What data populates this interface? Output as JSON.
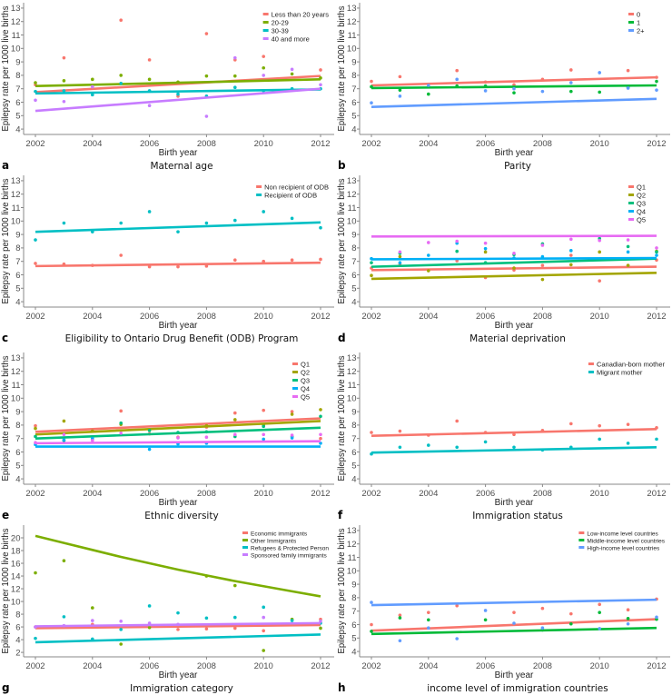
{
  "chart_data": [
    {
      "letter": "a",
      "title": "Maternal age",
      "type": "scatter",
      "xlabel": "Birth year",
      "ylabel": "Epilepsy rate per 1000 live births",
      "ylim": [
        3.6,
        13.4
      ],
      "yticks": [
        4,
        5,
        6,
        7,
        8,
        9,
        10,
        11,
        12,
        13
      ],
      "xticks": [
        2002,
        2004,
        2006,
        2008,
        2010,
        2012
      ],
      "legend": "top-right",
      "legend_size": "normal",
      "x": [
        2002,
        2003,
        2004,
        2005,
        2006,
        2007,
        2008,
        2009,
        2010,
        2011,
        2012
      ],
      "series": [
        {
          "name": "Less than 20 years",
          "color": "#F8766D",
          "values": [
            7.3,
            9.3,
            null,
            12.1,
            9.15,
            6.45,
            11.1,
            9.15,
            9.4,
            null,
            8.4
          ],
          "trend": [
            6.75,
            7.95
          ]
        },
        {
          "name": "20-29",
          "color": "#7CAE00",
          "values": [
            7.45,
            7.6,
            7.7,
            8.0,
            7.7,
            7.5,
            7.95,
            7.95,
            8.55,
            8.1,
            7.8
          ],
          "trend": [
            7.2,
            7.7
          ]
        },
        {
          "name": "30-39",
          "color": "#00BFC4",
          "values": [
            6.8,
            6.85,
            6.55,
            7.4,
            6.85,
            6.6,
            6.45,
            7.1,
            6.85,
            7.0,
            7.0
          ],
          "trend": [
            6.65,
            6.95
          ]
        },
        {
          "name": "40 and more",
          "color": "#C77CFF",
          "values": [
            6.15,
            6.05,
            7.15,
            null,
            5.75,
            null,
            4.95,
            9.3,
            8.0,
            8.45,
            7.3
          ],
          "trend": [
            5.35,
            7.0
          ]
        }
      ]
    },
    {
      "letter": "b",
      "title": "Parity",
      "type": "scatter",
      "xlabel": "Birth year",
      "ylabel": "Epilepsy rate per 1000 live births",
      "ylim": [
        3.6,
        13.4
      ],
      "yticks": [
        4,
        5,
        6,
        7,
        8,
        9,
        10,
        11,
        12,
        13
      ],
      "xticks": [
        2002,
        2004,
        2006,
        2008,
        2010,
        2012
      ],
      "legend": "top-right",
      "legend_size": "normal",
      "x": [
        2002,
        2003,
        2004,
        2005,
        2006,
        2007,
        2008,
        2009,
        2010,
        2011,
        2012
      ],
      "series": [
        {
          "name": "0",
          "color": "#F8766D",
          "values": [
            7.55,
            7.9,
            null,
            8.35,
            7.5,
            7.3,
            7.7,
            8.4,
            null,
            8.35,
            7.85
          ],
          "trend": [
            7.25,
            7.85
          ]
        },
        {
          "name": "1",
          "color": "#00BA38",
          "values": [
            7.15,
            6.9,
            6.6,
            7.2,
            7.2,
            6.7,
            null,
            6.8,
            6.75,
            7.1,
            7.55
          ],
          "trend": [
            7.05,
            7.25
          ]
        },
        {
          "name": "2+",
          "color": "#619CFF",
          "values": [
            5.95,
            6.45,
            7.25,
            7.7,
            6.85,
            7.0,
            6.8,
            7.45,
            8.2,
            7.05,
            6.9
          ],
          "trend": [
            5.65,
            6.25
          ]
        }
      ]
    },
    {
      "letter": "c",
      "title": "Eligibility to Ontario Drug Benefit (ODB) Program",
      "type": "scatter",
      "xlabel": "Birth year",
      "ylabel": "Epilepsy rate per 1000 live births",
      "ylim": [
        3.6,
        13.4
      ],
      "yticks": [
        4,
        5,
        6,
        7,
        8,
        9,
        10,
        11,
        12,
        13
      ],
      "xticks": [
        2002,
        2004,
        2006,
        2008,
        2010,
        2012
      ],
      "legend": "top-right",
      "legend_size": "normal",
      "x": [
        2002,
        2003,
        2004,
        2005,
        2006,
        2007,
        2008,
        2009,
        2010,
        2011,
        2012
      ],
      "series": [
        {
          "name": "Non recipient of ODB",
          "color": "#F8766D",
          "values": [
            6.85,
            6.8,
            6.7,
            7.45,
            6.6,
            6.6,
            6.65,
            7.1,
            7.0,
            7.1,
            7.15
          ],
          "trend": [
            6.65,
            6.9
          ]
        },
        {
          "name": "Recipient of ODB",
          "color": "#00BFC4",
          "values": [
            8.6,
            9.85,
            9.2,
            9.85,
            10.7,
            9.2,
            9.85,
            10.05,
            10.7,
            10.2,
            9.5
          ],
          "trend": [
            9.2,
            9.9
          ]
        }
      ]
    },
    {
      "letter": "d",
      "title": "Material deprivation",
      "type": "scatter",
      "xlabel": "Birth year",
      "ylabel": "Epilepsy rate per 1000 live births",
      "ylim": [
        3.6,
        13.4
      ],
      "yticks": [
        4,
        5,
        6,
        7,
        8,
        9,
        10,
        11,
        12,
        13
      ],
      "xticks": [
        2002,
        2004,
        2006,
        2008,
        2010,
        2012
      ],
      "legend": "top-right",
      "legend_size": "normal",
      "x": [
        2002,
        2003,
        2004,
        2005,
        2006,
        2007,
        2008,
        2009,
        2010,
        2011,
        2012
      ],
      "series": [
        {
          "name": "Q1",
          "color": "#F8766D",
          "values": [
            6.5,
            6.8,
            null,
            7.05,
            5.8,
            6.35,
            6.7,
            7.45,
            5.55,
            6.7,
            7.1
          ],
          "trend": [
            6.35,
            6.6
          ]
        },
        {
          "name": "Q2",
          "color": "#A3A500",
          "values": [
            5.95,
            7.35,
            6.3,
            null,
            7.7,
            6.5,
            5.65,
            6.75,
            7.7,
            6.7,
            7.75
          ],
          "trend": [
            5.7,
            6.15
          ]
        },
        {
          "name": "Q3",
          "color": "#00BF7D",
          "values": [
            6.9,
            7.6,
            null,
            7.75,
            6.9,
            7.5,
            8.3,
            null,
            8.7,
            8.1,
            7.7
          ],
          "trend": [
            6.6,
            7.2
          ]
        },
        {
          "name": "Q4",
          "color": "#00B0F6",
          "values": [
            7.2,
            6.9,
            7.45,
            8.35,
            7.95,
            7.25,
            7.35,
            7.8,
            null,
            7.7,
            7.45
          ],
          "trend": [
            7.15,
            7.25
          ]
        },
        {
          "name": "Q5",
          "color": "#E76BF3",
          "values": [
            null,
            7.7,
            8.4,
            8.5,
            8.35,
            7.6,
            8.2,
            8.65,
            8.55,
            8.6,
            8.0
          ],
          "trend": [
            8.85,
            8.9
          ]
        }
      ]
    },
    {
      "letter": "e",
      "title": "Ethnic diversity",
      "type": "scatter",
      "xlabel": "Birth year",
      "ylabel": "Epilepsy rate per 1000 live births",
      "ylim": [
        3.6,
        13.4
      ],
      "yticks": [
        4,
        5,
        6,
        7,
        8,
        9,
        10,
        11,
        12,
        13
      ],
      "xticks": [
        2002,
        2004,
        2006,
        2008,
        2010,
        2012
      ],
      "legend": "top-right",
      "legend_size": "normal",
      "x": [
        2002,
        2003,
        2004,
        2005,
        2006,
        2007,
        2008,
        2009,
        2010,
        2011,
        2012
      ],
      "series": [
        {
          "name": "Q1",
          "color": "#F8766D",
          "values": [
            7.95,
            null,
            null,
            9.05,
            7.35,
            7.1,
            7.85,
            8.9,
            9.1,
            9.0,
            7.0
          ],
          "trend": [
            7.5,
            8.5
          ]
        },
        {
          "name": "Q2",
          "color": "#A3A500",
          "values": [
            7.75,
            8.3,
            7.55,
            8.05,
            null,
            null,
            7.95,
            8.4,
            8.0,
            8.8,
            9.15
          ],
          "trend": [
            7.3,
            8.3
          ]
        },
        {
          "name": "Q3",
          "color": "#00BF7D",
          "values": [
            7.15,
            6.85,
            null,
            8.15,
            7.6,
            7.45,
            7.5,
            7.15,
            7.9,
            7.15,
            8.65
          ],
          "trend": [
            7.0,
            7.8
          ]
        },
        {
          "name": "Q4",
          "color": "#00B0F6",
          "values": [
            6.55,
            6.9,
            7.0,
            null,
            6.2,
            6.6,
            6.65,
            null,
            6.95,
            7.05,
            6.65
          ],
          "trend": [
            6.4,
            6.4
          ]
        },
        {
          "name": "Q5",
          "color": "#E76BF3",
          "values": [
            6.7,
            7.3,
            6.85,
            7.4,
            null,
            7.05,
            7.1,
            7.3,
            7.3,
            7.25,
            7.3
          ],
          "trend": [
            6.65,
            6.8
          ]
        }
      ]
    },
    {
      "letter": "f",
      "title": "Immigration status",
      "type": "scatter",
      "xlabel": "Birth year",
      "ylabel": "Epilepsy rate per 1000 live births",
      "ylim": [
        3.6,
        13.4
      ],
      "yticks": [
        4,
        5,
        6,
        7,
        8,
        9,
        10,
        11,
        12,
        13
      ],
      "xticks": [
        2002,
        2004,
        2006,
        2008,
        2010,
        2012
      ],
      "legend": "top-right",
      "legend_size": "normal",
      "x": [
        2002,
        2003,
        2004,
        2005,
        2006,
        2007,
        2008,
        2009,
        2010,
        2011,
        2012
      ],
      "series": [
        {
          "name": "Canadian-born mother",
          "color": "#F8766D",
          "values": [
            7.45,
            7.55,
            7.25,
            8.3,
            7.45,
            7.3,
            7.6,
            8.1,
            7.95,
            8.05,
            7.8
          ],
          "trend": [
            7.2,
            7.7
          ]
        },
        {
          "name": "Migrant mother",
          "color": "#00BFC4",
          "values": [
            5.85,
            6.35,
            6.5,
            6.35,
            6.75,
            6.35,
            6.15,
            6.35,
            6.95,
            6.65,
            6.95
          ],
          "trend": [
            5.95,
            6.35
          ]
        }
      ]
    },
    {
      "letter": "g",
      "title": "Immigration category",
      "type": "scatter",
      "xlabel": "Birth year",
      "ylabel": "Epilepsy rate per 1000 live births",
      "ylim": [
        1.3,
        22
      ],
      "yticks": [
        2,
        4,
        6,
        8,
        10,
        12,
        14,
        16,
        18,
        20
      ],
      "xticks": [
        2002,
        2004,
        2006,
        2008,
        2010,
        2012
      ],
      "legend": "top-right",
      "legend_size": "small",
      "x": [
        2002,
        2003,
        2004,
        2005,
        2006,
        2007,
        2008,
        2009,
        2010,
        2011,
        2012
      ],
      "series": [
        {
          "name": "Economic immigrants",
          "color": "#F8766D",
          "values": [
            6.0,
            null,
            6.4,
            null,
            null,
            5.6,
            5.7,
            5.8,
            5.4,
            null,
            7.2
          ],
          "trend": [
            5.8,
            6.3
          ]
        },
        {
          "name": "Other Immigrants",
          "color": "#7CAE00",
          "values": [
            14.5,
            16.4,
            9.0,
            3.3,
            5.9,
            null,
            14.0,
            12.5,
            2.3,
            7.2,
            5.8
          ],
          "trend_curve": [
            20.3,
            19.2,
            18.1,
            17.0,
            16.0,
            15.0,
            14.1,
            13.2,
            12.4,
            11.6,
            10.8
          ]
        },
        {
          "name": "Refugees & Protected Person",
          "color": "#00BFC4",
          "values": [
            4.2,
            7.6,
            4.1,
            5.6,
            9.3,
            8.2,
            7.4,
            7.5,
            9.1,
            7.0,
            6.6
          ],
          "trend": [
            3.6,
            4.8
          ]
        },
        {
          "name": "Sponsored family immigrants",
          "color": "#C77CFF",
          "values": [
            6.0,
            6.2,
            7.0,
            6.9,
            6.6,
            6.4,
            null,
            null,
            7.5,
            null,
            6.9
          ],
          "trend": [
            6.1,
            6.6
          ]
        }
      ]
    },
    {
      "letter": "h",
      "title": "income level of immigration countries",
      "type": "scatter",
      "xlabel": "Birth year",
      "ylabel": "Epilepsy rate per 1000 live births",
      "ylim": [
        3.6,
        13.4
      ],
      "yticks": [
        4,
        5,
        6,
        7,
        8,
        9,
        10,
        11,
        12,
        13
      ],
      "xticks": [
        2002,
        2004,
        2006,
        2008,
        2010,
        2012
      ],
      "legend": "top-right",
      "legend_size": "small",
      "x": [
        2002,
        2003,
        2004,
        2005,
        2006,
        2007,
        2008,
        2009,
        2010,
        2011,
        2012
      ],
      "series": [
        {
          "name": "Low-income level countries",
          "color": "#F8766D",
          "values": [
            6.0,
            6.7,
            6.9,
            7.4,
            null,
            6.9,
            7.2,
            6.8,
            7.5,
            7.1,
            7.9
          ],
          "trend": [
            5.55,
            6.4
          ]
        },
        {
          "name": "Middle-income level countries",
          "color": "#00BA38",
          "values": [
            5.5,
            6.5,
            6.35,
            null,
            6.35,
            null,
            5.6,
            6.05,
            6.9,
            6.45,
            6.4
          ],
          "trend": [
            5.3,
            5.75
          ]
        },
        {
          "name": "High-income level countries",
          "color": "#619CFF",
          "values": [
            7.65,
            4.8,
            5.75,
            4.95,
            7.05,
            6.1,
            5.75,
            null,
            5.7,
            6.05,
            6.55
          ],
          "trend": [
            7.45,
            7.85
          ]
        }
      ]
    }
  ]
}
